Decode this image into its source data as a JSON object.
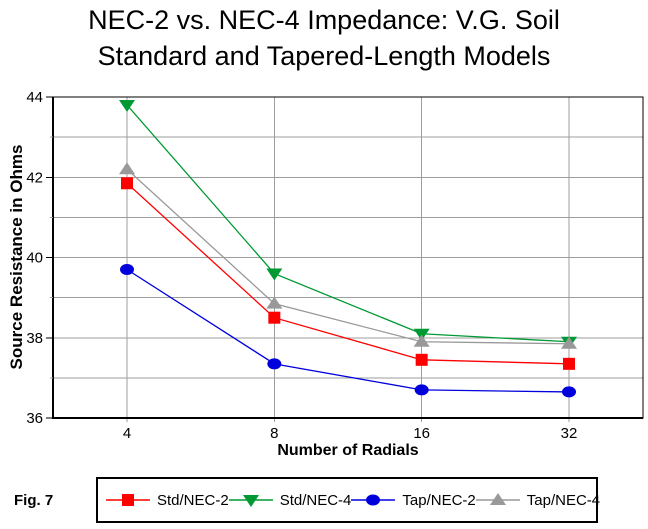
{
  "figure_label": "Fig. 7",
  "title": {
    "line1": "NEC-2 vs. NEC-4 Impedance: V.G. Soil",
    "line2": "Standard and Tapered-Length Models"
  },
  "chart_data": {
    "type": "line",
    "title": "NEC-2 vs. NEC-4 Impedance: V.G. Soil Standard and Tapered-Length Models",
    "xlabel": "Number of Radials",
    "ylabel": "Source Resistance in Ohms",
    "x_scale": "log2",
    "categories": [
      4,
      8,
      16,
      32
    ],
    "ylim": [
      36,
      44
    ],
    "ytick_label_step": 2,
    "ygrid_step": 1,
    "grid": true,
    "legend_position": "bottom",
    "series": [
      {
        "name": "Std/NEC-2",
        "color": "#ff0000",
        "marker": "square",
        "values": [
          41.85,
          38.5,
          37.45,
          37.35
        ]
      },
      {
        "name": "Std/NEC-4",
        "color": "#009933",
        "marker": "triangle-down",
        "values": [
          43.8,
          39.6,
          38.1,
          37.9
        ]
      },
      {
        "name": "Tap/NEC-2",
        "color": "#0000dd",
        "marker": "circle",
        "values": [
          39.7,
          37.35,
          36.7,
          36.65
        ]
      },
      {
        "name": "Tap/NEC-4",
        "color": "#999999",
        "marker": "triangle-up",
        "values": [
          42.2,
          38.85,
          37.9,
          37.85
        ]
      }
    ]
  },
  "colors": {
    "grid": "#9e9e9e",
    "axis": "#000000",
    "background": "#ffffff"
  }
}
